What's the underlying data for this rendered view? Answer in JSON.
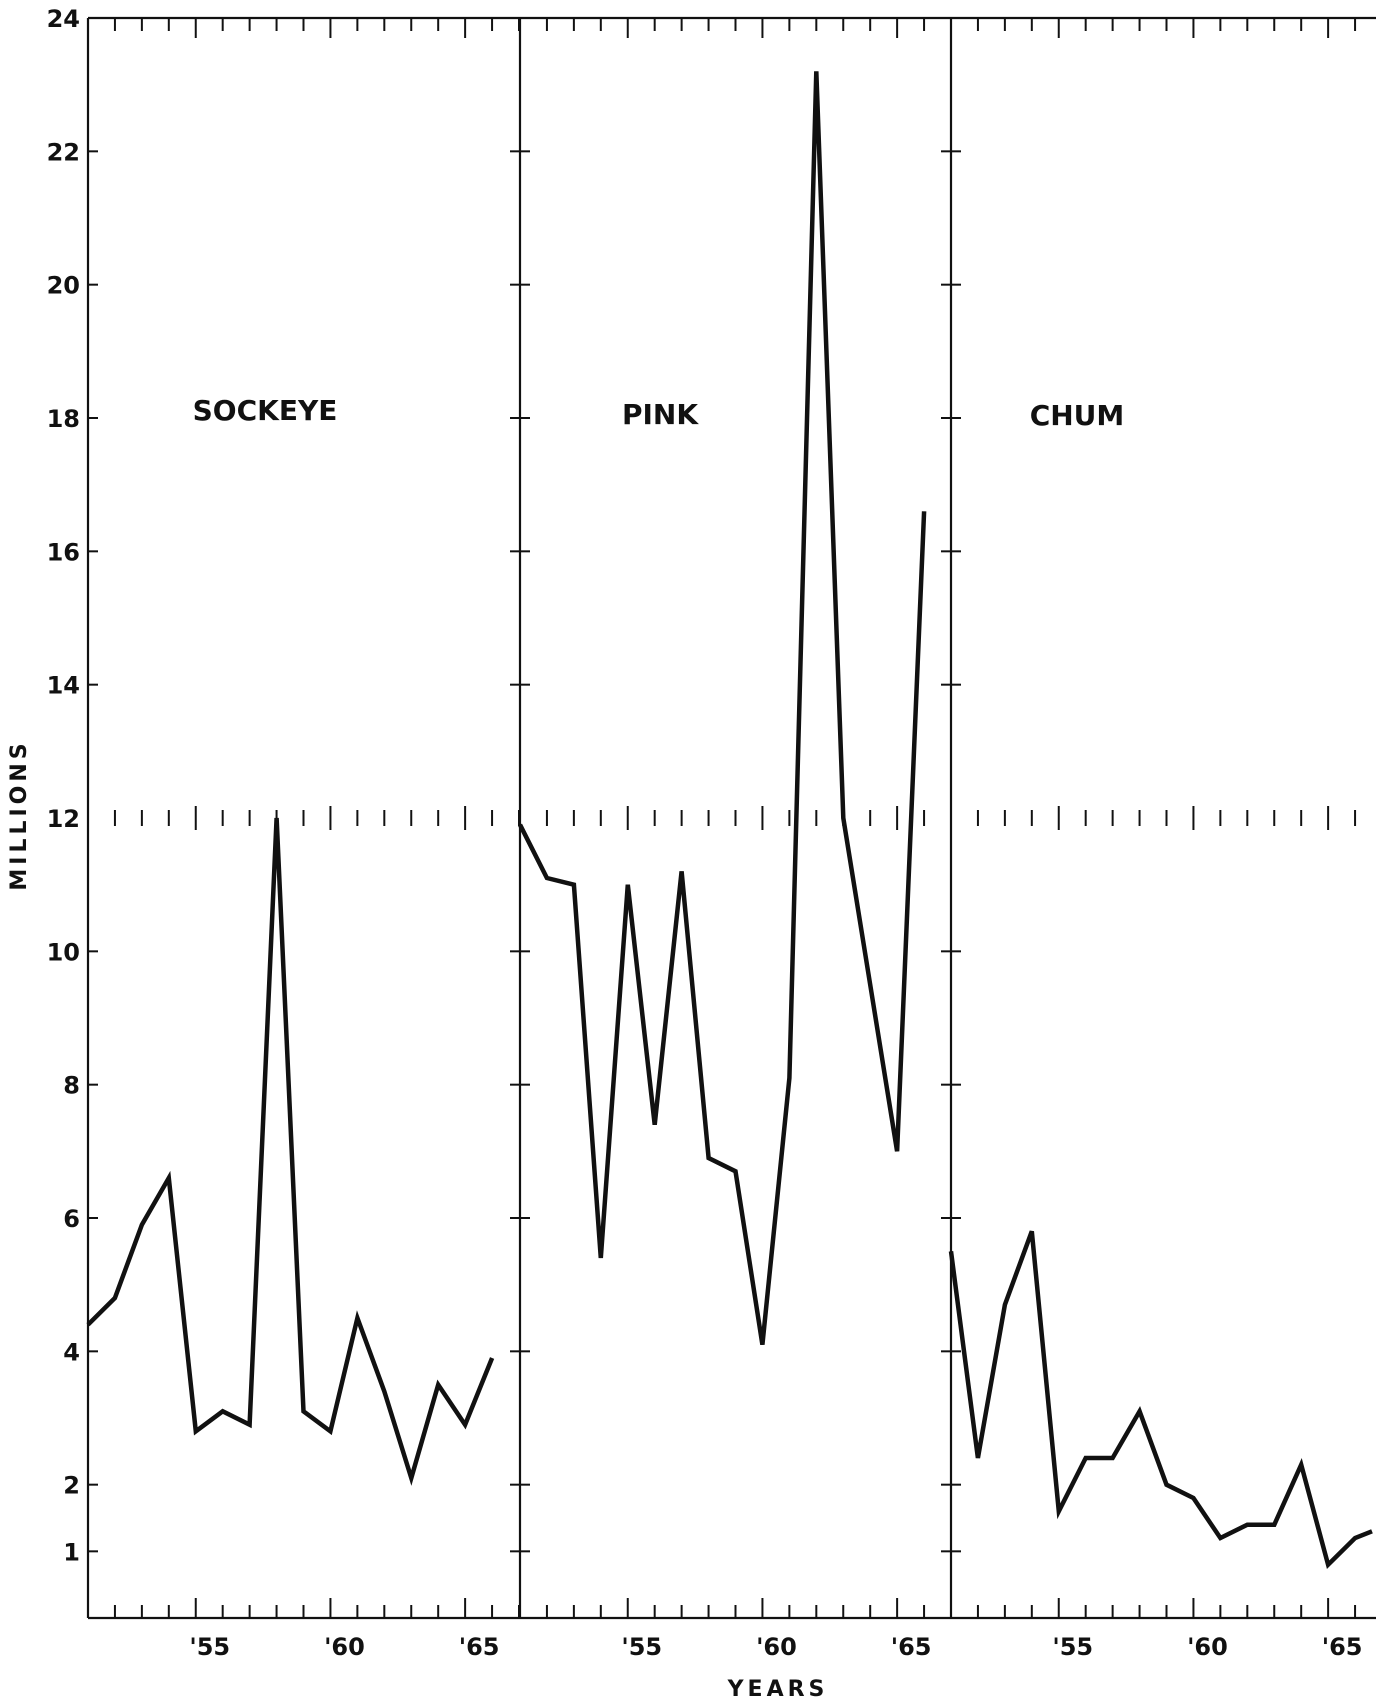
{
  "chart_data": {
    "type": "line",
    "ylabel": "MILLIONS",
    "xlabel": "YEARS",
    "ylim": [
      0,
      24
    ],
    "yticks": [
      {
        "value": 24,
        "label": "24"
      },
      {
        "value": 22,
        "label": "22"
      },
      {
        "value": 20,
        "label": "20"
      },
      {
        "value": 18,
        "label": "18"
      },
      {
        "value": 16,
        "label": "16"
      },
      {
        "value": 14,
        "label": "14"
      },
      {
        "value": 12,
        "label": "12"
      },
      {
        "value": 10,
        "label": "10"
      },
      {
        "value": 8,
        "label": "8"
      },
      {
        "value": 6,
        "label": "6"
      },
      {
        "value": 4,
        "label": "4"
      },
      {
        "value": 2,
        "label": "2"
      },
      {
        "value": 1,
        "label": "1"
      }
    ],
    "xlim": [
      1951,
      1967
    ],
    "xticks": [
      {
        "value": 1955,
        "label": "'55"
      },
      {
        "value": 1960,
        "label": "'60"
      },
      {
        "value": 1965,
        "label": "'65"
      }
    ],
    "grid": false,
    "panels": [
      {
        "title": "SOCKEYE",
        "x": [
          1951,
          1952,
          1953,
          1954,
          1955,
          1956,
          1957,
          1958,
          1959,
          1960,
          1961,
          1962,
          1963,
          1964,
          1965,
          1966
        ],
        "values": [
          4.4,
          4.8,
          5.9,
          6.6,
          2.8,
          3.1,
          2.9,
          12.0,
          3.1,
          2.8,
          4.5,
          3.4,
          2.1,
          3.5,
          2.9,
          3.9
        ]
      },
      {
        "title": "PINK",
        "x": [
          1951,
          1952,
          1953,
          1954,
          1955,
          1956,
          1957,
          1958,
          1959,
          1960,
          1961,
          1962,
          1963,
          1964,
          1965,
          1966
        ],
        "values": [
          11.9,
          11.1,
          11.0,
          5.4,
          11.0,
          7.4,
          11.2,
          6.9,
          6.7,
          4.1,
          8.1,
          23.2,
          12.0,
          9.5,
          7.0,
          16.6
        ]
      },
      {
        "title": "CHUM",
        "x": [
          1951,
          1952,
          1953,
          1954,
          1955,
          1956,
          1957,
          1958,
          1959,
          1960,
          1961,
          1962,
          1963,
          1964,
          1965,
          1966,
          1967
        ],
        "values": [
          5.5,
          2.4,
          4.7,
          5.8,
          1.6,
          2.4,
          2.4,
          3.1,
          2.0,
          1.8,
          1.2,
          1.4,
          1.4,
          2.3,
          0.8,
          1.2,
          1.3
        ]
      }
    ]
  }
}
